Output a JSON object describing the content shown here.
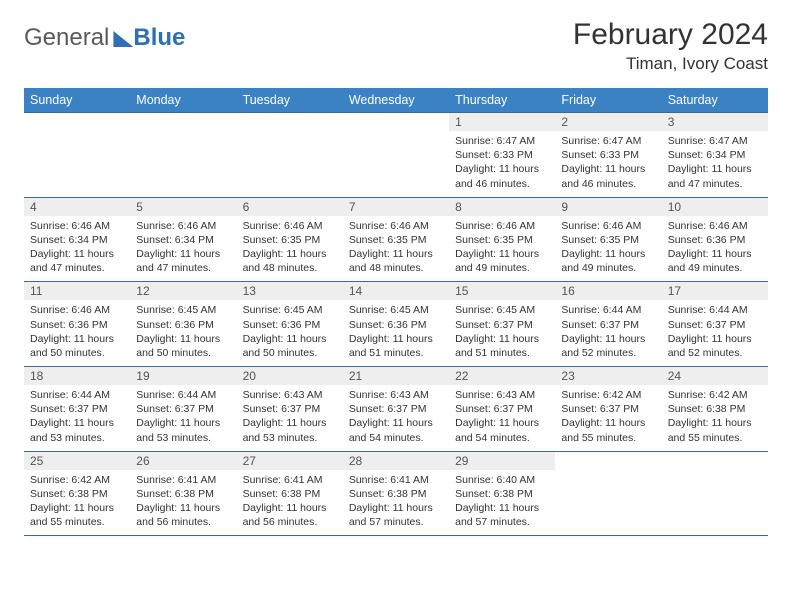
{
  "brand": {
    "part1": "General",
    "part2": "Blue"
  },
  "title": "February 2024",
  "location": "Timan, Ivory Coast",
  "colors": {
    "header_bg": "#3a82c4",
    "header_text": "#ffffff",
    "daynum_bg": "#eeeeee",
    "border": "#3a6a9a",
    "logo_blue": "#2f6fb5",
    "logo_gray": "#5a5a5a"
  },
  "weekdays": [
    "Sunday",
    "Monday",
    "Tuesday",
    "Wednesday",
    "Thursday",
    "Friday",
    "Saturday"
  ],
  "weeks": [
    [
      null,
      null,
      null,
      null,
      {
        "n": "1",
        "sr": "Sunrise: 6:47 AM",
        "ss": "Sunset: 6:33 PM",
        "dl": "Daylight: 11 hours and 46 minutes."
      },
      {
        "n": "2",
        "sr": "Sunrise: 6:47 AM",
        "ss": "Sunset: 6:33 PM",
        "dl": "Daylight: 11 hours and 46 minutes."
      },
      {
        "n": "3",
        "sr": "Sunrise: 6:47 AM",
        "ss": "Sunset: 6:34 PM",
        "dl": "Daylight: 11 hours and 47 minutes."
      }
    ],
    [
      {
        "n": "4",
        "sr": "Sunrise: 6:46 AM",
        "ss": "Sunset: 6:34 PM",
        "dl": "Daylight: 11 hours and 47 minutes."
      },
      {
        "n": "5",
        "sr": "Sunrise: 6:46 AM",
        "ss": "Sunset: 6:34 PM",
        "dl": "Daylight: 11 hours and 47 minutes."
      },
      {
        "n": "6",
        "sr": "Sunrise: 6:46 AM",
        "ss": "Sunset: 6:35 PM",
        "dl": "Daylight: 11 hours and 48 minutes."
      },
      {
        "n": "7",
        "sr": "Sunrise: 6:46 AM",
        "ss": "Sunset: 6:35 PM",
        "dl": "Daylight: 11 hours and 48 minutes."
      },
      {
        "n": "8",
        "sr": "Sunrise: 6:46 AM",
        "ss": "Sunset: 6:35 PM",
        "dl": "Daylight: 11 hours and 49 minutes."
      },
      {
        "n": "9",
        "sr": "Sunrise: 6:46 AM",
        "ss": "Sunset: 6:35 PM",
        "dl": "Daylight: 11 hours and 49 minutes."
      },
      {
        "n": "10",
        "sr": "Sunrise: 6:46 AM",
        "ss": "Sunset: 6:36 PM",
        "dl": "Daylight: 11 hours and 49 minutes."
      }
    ],
    [
      {
        "n": "11",
        "sr": "Sunrise: 6:46 AM",
        "ss": "Sunset: 6:36 PM",
        "dl": "Daylight: 11 hours and 50 minutes."
      },
      {
        "n": "12",
        "sr": "Sunrise: 6:45 AM",
        "ss": "Sunset: 6:36 PM",
        "dl": "Daylight: 11 hours and 50 minutes."
      },
      {
        "n": "13",
        "sr": "Sunrise: 6:45 AM",
        "ss": "Sunset: 6:36 PM",
        "dl": "Daylight: 11 hours and 50 minutes."
      },
      {
        "n": "14",
        "sr": "Sunrise: 6:45 AM",
        "ss": "Sunset: 6:36 PM",
        "dl": "Daylight: 11 hours and 51 minutes."
      },
      {
        "n": "15",
        "sr": "Sunrise: 6:45 AM",
        "ss": "Sunset: 6:37 PM",
        "dl": "Daylight: 11 hours and 51 minutes."
      },
      {
        "n": "16",
        "sr": "Sunrise: 6:44 AM",
        "ss": "Sunset: 6:37 PM",
        "dl": "Daylight: 11 hours and 52 minutes."
      },
      {
        "n": "17",
        "sr": "Sunrise: 6:44 AM",
        "ss": "Sunset: 6:37 PM",
        "dl": "Daylight: 11 hours and 52 minutes."
      }
    ],
    [
      {
        "n": "18",
        "sr": "Sunrise: 6:44 AM",
        "ss": "Sunset: 6:37 PM",
        "dl": "Daylight: 11 hours and 53 minutes."
      },
      {
        "n": "19",
        "sr": "Sunrise: 6:44 AM",
        "ss": "Sunset: 6:37 PM",
        "dl": "Daylight: 11 hours and 53 minutes."
      },
      {
        "n": "20",
        "sr": "Sunrise: 6:43 AM",
        "ss": "Sunset: 6:37 PM",
        "dl": "Daylight: 11 hours and 53 minutes."
      },
      {
        "n": "21",
        "sr": "Sunrise: 6:43 AM",
        "ss": "Sunset: 6:37 PM",
        "dl": "Daylight: 11 hours and 54 minutes."
      },
      {
        "n": "22",
        "sr": "Sunrise: 6:43 AM",
        "ss": "Sunset: 6:37 PM",
        "dl": "Daylight: 11 hours and 54 minutes."
      },
      {
        "n": "23",
        "sr": "Sunrise: 6:42 AM",
        "ss": "Sunset: 6:37 PM",
        "dl": "Daylight: 11 hours and 55 minutes."
      },
      {
        "n": "24",
        "sr": "Sunrise: 6:42 AM",
        "ss": "Sunset: 6:38 PM",
        "dl": "Daylight: 11 hours and 55 minutes."
      }
    ],
    [
      {
        "n": "25",
        "sr": "Sunrise: 6:42 AM",
        "ss": "Sunset: 6:38 PM",
        "dl": "Daylight: 11 hours and 55 minutes."
      },
      {
        "n": "26",
        "sr": "Sunrise: 6:41 AM",
        "ss": "Sunset: 6:38 PM",
        "dl": "Daylight: 11 hours and 56 minutes."
      },
      {
        "n": "27",
        "sr": "Sunrise: 6:41 AM",
        "ss": "Sunset: 6:38 PM",
        "dl": "Daylight: 11 hours and 56 minutes."
      },
      {
        "n": "28",
        "sr": "Sunrise: 6:41 AM",
        "ss": "Sunset: 6:38 PM",
        "dl": "Daylight: 11 hours and 57 minutes."
      },
      {
        "n": "29",
        "sr": "Sunrise: 6:40 AM",
        "ss": "Sunset: 6:38 PM",
        "dl": "Daylight: 11 hours and 57 minutes."
      },
      null,
      null
    ]
  ]
}
